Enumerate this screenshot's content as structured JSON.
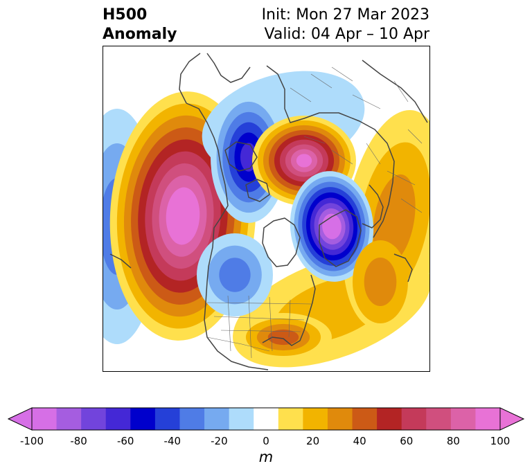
{
  "header": {
    "title_line1": "H500",
    "title_line2": "Anomaly",
    "init": "Init: Mon 27 Mar 2023",
    "valid": "Valid: 04 Apr – 10 Apr"
  },
  "colorbar": {
    "unit_label": "m",
    "levels": [
      -100,
      -90,
      -80,
      -70,
      -60,
      -50,
      -40,
      -30,
      -20,
      -10,
      10,
      20,
      30,
      40,
      50,
      60,
      70,
      80,
      90,
      100
    ],
    "tick_labels": [
      "-100",
      "-80",
      "-60",
      "-40",
      "-20",
      "0",
      "20",
      "40",
      "60",
      "80",
      "100"
    ],
    "colors": [
      "#d66fe6",
      "#a55de0",
      "#7244dc",
      "#4428d6",
      "#0000cc",
      "#2540d8",
      "#4f7ce6",
      "#76aaf0",
      "#aedcfb",
      "#ffffff",
      "#ffe04d",
      "#f2b400",
      "#e08a0c",
      "#cc5a16",
      "#b32424",
      "#c43a5a",
      "#d04f7e",
      "#dc62a8",
      "#e872d6"
    ],
    "under_color": "#d66fe6",
    "over_color": "#e872d6"
  },
  "map": {
    "name": "Northern Hemisphere 500 hPa height anomaly",
    "anomaly_centers": [
      {
        "feature": "ridge-west-america",
        "sign": "positive",
        "max_m": 100
      },
      {
        "feature": "trough-greenland-canada",
        "sign": "negative",
        "max_m": -60
      },
      {
        "feature": "ridge-siberia",
        "sign": "positive",
        "max_m": 90
      },
      {
        "feature": "trough-europe",
        "sign": "negative",
        "max_m": -100
      },
      {
        "feature": "trough-north-pacific",
        "sign": "negative",
        "max_m": -40
      },
      {
        "feature": "trough-central-us",
        "sign": "negative",
        "max_m": -40
      },
      {
        "feature": "ridge-atlantic-band",
        "sign": "positive",
        "max_m": 40
      }
    ]
  }
}
